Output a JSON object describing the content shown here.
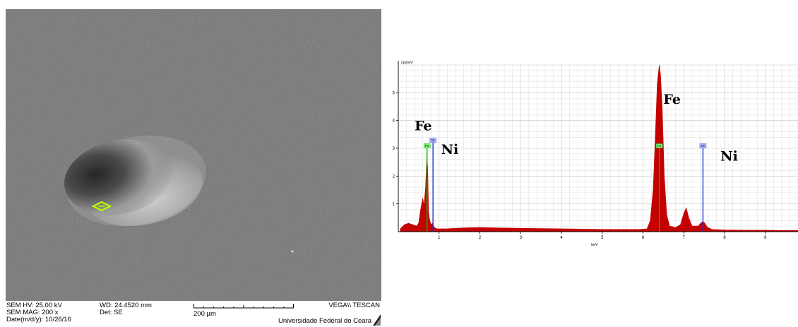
{
  "sem": {
    "hv": "SEM HV: 25.00 kV",
    "wd": "WD: 24.4520 mm",
    "mag": "SEM MAG: 200 x",
    "det": "Det: SE",
    "date": "Date(m/d/y): 10/26/16",
    "scale": "200 µm",
    "brand": "VEGA\\\\ TESCAN",
    "institution": "Universidade Federal do Ceara"
  },
  "chart_data": {
    "type": "area",
    "title": "",
    "xlabel": "keV",
    "ylabel": "cps/eV",
    "xlim": [
      0,
      9.8
    ],
    "ylim": [
      0,
      6
    ],
    "xticks": [
      1,
      2,
      3,
      4,
      5,
      6,
      7,
      8,
      9
    ],
    "yticks": [
      1,
      2,
      3,
      4,
      5
    ],
    "grid": true,
    "series": [
      {
        "color": "#c40000",
        "points": [
          [
            0.05,
            0.1
          ],
          [
            0.15,
            0.25
          ],
          [
            0.25,
            0.3
          ],
          [
            0.35,
            0.25
          ],
          [
            0.45,
            0.2
          ],
          [
            0.5,
            0.3
          ],
          [
            0.55,
            0.8
          ],
          [
            0.6,
            1.2
          ],
          [
            0.63,
            0.9
          ],
          [
            0.67,
            1.6
          ],
          [
            0.7,
            2.7
          ],
          [
            0.72,
            2.3
          ],
          [
            0.74,
            0.7
          ],
          [
            0.77,
            0.4
          ],
          [
            0.8,
            0.25
          ],
          [
            0.84,
            0.3
          ],
          [
            0.88,
            0.15
          ],
          [
            0.95,
            0.1
          ],
          [
            1.2,
            0.1
          ],
          [
            1.4,
            0.12
          ],
          [
            1.7,
            0.14
          ],
          [
            2.0,
            0.15
          ],
          [
            2.3,
            0.14
          ],
          [
            2.6,
            0.13
          ],
          [
            3.0,
            0.12
          ],
          [
            3.5,
            0.11
          ],
          [
            4.0,
            0.1
          ],
          [
            4.5,
            0.09
          ],
          [
            5.0,
            0.08
          ],
          [
            5.5,
            0.08
          ],
          [
            5.9,
            0.08
          ],
          [
            6.1,
            0.1
          ],
          [
            6.18,
            0.4
          ],
          [
            6.25,
            1.5
          ],
          [
            6.3,
            3.3
          ],
          [
            6.35,
            5.3
          ],
          [
            6.4,
            6.0
          ],
          [
            6.43,
            5.6
          ],
          [
            6.47,
            4.4
          ],
          [
            6.52,
            2.0
          ],
          [
            6.58,
            0.6
          ],
          [
            6.65,
            0.2
          ],
          [
            6.8,
            0.15
          ],
          [
            6.92,
            0.25
          ],
          [
            7.0,
            0.65
          ],
          [
            7.06,
            0.85
          ],
          [
            7.12,
            0.5
          ],
          [
            7.2,
            0.2
          ],
          [
            7.35,
            0.2
          ],
          [
            7.45,
            0.35
          ],
          [
            7.5,
            0.33
          ],
          [
            7.58,
            0.15
          ],
          [
            7.7,
            0.08
          ],
          [
            8.0,
            0.06
          ],
          [
            8.5,
            0.05
          ],
          [
            9.0,
            0.05
          ],
          [
            9.5,
            0.04
          ],
          [
            9.8,
            0.04
          ]
        ]
      }
    ],
    "markers": [
      {
        "element": "Fe",
        "tag": "Fe",
        "energy": 0.705,
        "height": 3.0,
        "color": "#00bb00"
      },
      {
        "element": "Ni",
        "tag": "Ni",
        "energy": 0.851,
        "height": 3.2,
        "color": "#2233dd"
      },
      {
        "element": "Fe",
        "tag": "Fe",
        "energy": 6.4,
        "height": 3.0,
        "color": "#00bb00"
      },
      {
        "element": "Ni",
        "tag": "Ni",
        "energy": 7.47,
        "height": 3.0,
        "color": "#2233dd"
      }
    ],
    "annotations": [
      {
        "text": "Fe",
        "x": 0.4,
        "y": 3.65
      },
      {
        "text": "Ni",
        "x": 1.05,
        "y": 2.8
      },
      {
        "text": "Fe",
        "x": 6.5,
        "y": 4.6
      },
      {
        "text": "Ni",
        "x": 7.9,
        "y": 2.55
      }
    ]
  }
}
